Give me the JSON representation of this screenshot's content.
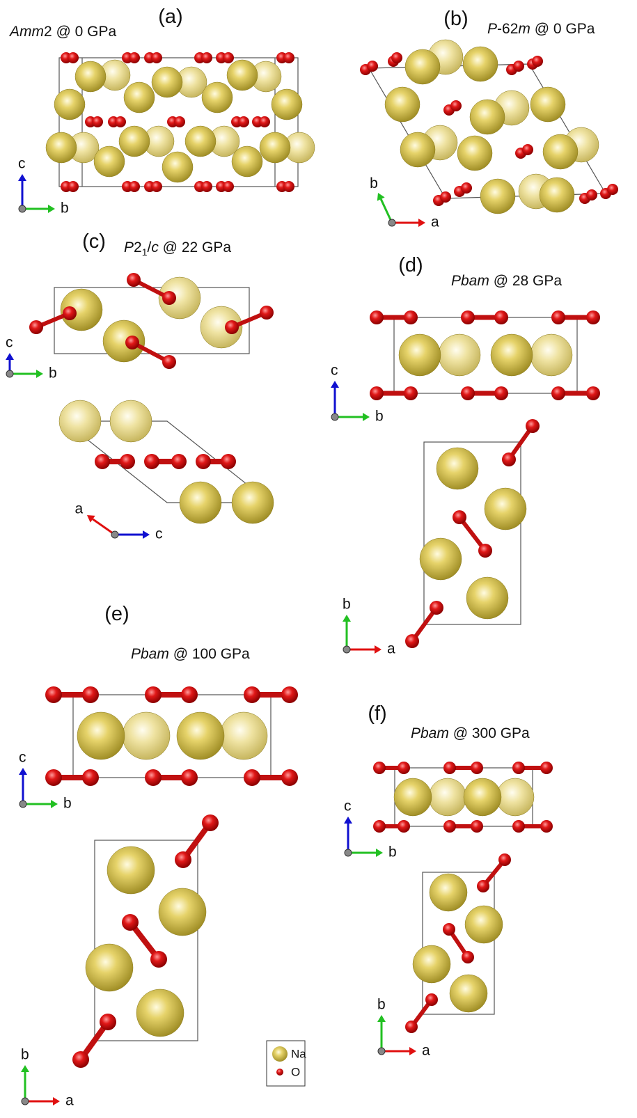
{
  "panels": [
    {
      "label": "(a)",
      "title": [
        {
          "text": "Amm",
          "style": "italic"
        },
        {
          "text": "2 @ 0 GPa",
          "style": "normal"
        }
      ],
      "axes": [
        {
          "up": "c",
          "right": "b"
        }
      ]
    },
    {
      "label": "(b)",
      "title": [
        {
          "text": "P",
          "style": "italic"
        },
        {
          "text": "-62",
          "style": "normal"
        },
        {
          "text": "m",
          "style": "italic"
        },
        {
          "text": " @ 0 GPa",
          "style": "normal"
        }
      ],
      "axes": [
        {
          "up": "b",
          "right": "a"
        }
      ]
    },
    {
      "label": "(c)",
      "title": [
        {
          "text": "P",
          "style": "italic"
        },
        {
          "text": "2",
          "style": "normal"
        },
        {
          "text": "1",
          "style": "sub"
        },
        {
          "text": "/",
          "style": "normal"
        },
        {
          "text": "c",
          "style": "italic"
        },
        {
          "text": " @ 22 GPa",
          "style": "normal"
        }
      ],
      "axes": [
        {
          "up": "c",
          "right": "b"
        },
        {
          "up": "a",
          "right": "c"
        }
      ]
    },
    {
      "label": "(d)",
      "title": [
        {
          "text": "Pbam",
          "style": "italic"
        },
        {
          "text": " @ 28 GPa",
          "style": "normal"
        }
      ],
      "axes": [
        {
          "up": "c",
          "right": "b"
        },
        {
          "up": "b",
          "right": "a"
        }
      ]
    },
    {
      "label": "(e)",
      "title": [
        {
          "text": "Pbam",
          "style": "italic"
        },
        {
          "text": " @ 100 GPa",
          "style": "normal"
        }
      ],
      "axes": [
        {
          "up": "c",
          "right": "b"
        },
        {
          "up": "b",
          "right": "a"
        }
      ]
    },
    {
      "label": "(f)",
      "title": [
        {
          "text": "Pbam",
          "style": "italic"
        },
        {
          "text": " @ 300 GPa",
          "style": "normal"
        }
      ],
      "axes": [
        {
          "up": "c",
          "right": "b"
        },
        {
          "up": "b",
          "right": "a"
        }
      ]
    }
  ],
  "legend": [
    "Na",
    "O"
  ]
}
